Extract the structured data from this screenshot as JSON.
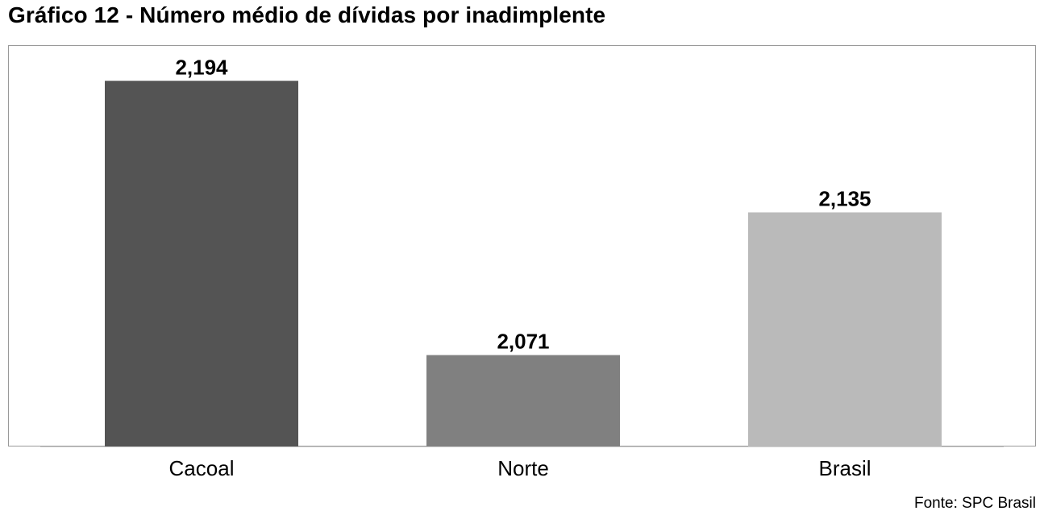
{
  "title": "Gráfico 12 - Número médio de dívidas por inadimplente",
  "source": "Fonte: SPC Brasil",
  "chart_data": {
    "type": "bar",
    "title": "Gráfico 12 - Número médio de dívidas por inadimplente",
    "categories": [
      "Cacoal",
      "Norte",
      "Brasil"
    ],
    "values": [
      2.194,
      2.071,
      2.135
    ],
    "value_labels": [
      "2,194",
      "2,071",
      "2,135"
    ],
    "colors": [
      "#545454",
      "#808080",
      "#bababa"
    ],
    "xlabel": "",
    "ylabel": "",
    "ylim": [
      2.03,
      2.21
    ],
    "grid": false,
    "legend": "none"
  }
}
